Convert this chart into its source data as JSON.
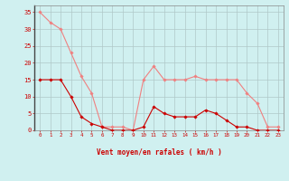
{
  "hours": [
    0,
    1,
    2,
    3,
    4,
    5,
    6,
    7,
    8,
    9,
    10,
    11,
    12,
    13,
    14,
    15,
    16,
    17,
    18,
    19,
    20,
    21,
    22,
    23
  ],
  "rafales": [
    35,
    32,
    30,
    23,
    16,
    11,
    1,
    1,
    1,
    0,
    15,
    19,
    15,
    15,
    15,
    16,
    15,
    15,
    15,
    15,
    11,
    8,
    1,
    1
  ],
  "moyen": [
    15,
    15,
    15,
    10,
    4,
    2,
    1,
    0,
    0,
    0,
    1,
    7,
    5,
    4,
    4,
    4,
    6,
    5,
    3,
    1,
    1,
    0,
    0,
    0
  ],
  "line_color_rafales": "#f08080",
  "line_color_moyen": "#cc0000",
  "background_color": "#d0f0f0",
  "grid_color": "#b0c8c8",
  "xlabel": "Vent moyen/en rafales ( km/h )",
  "tick_color": "#cc0000",
  "ylim": [
    0,
    37
  ],
  "yticks": [
    0,
    5,
    10,
    15,
    20,
    25,
    30,
    35
  ],
  "xlim": [
    -0.5,
    23.5
  ]
}
